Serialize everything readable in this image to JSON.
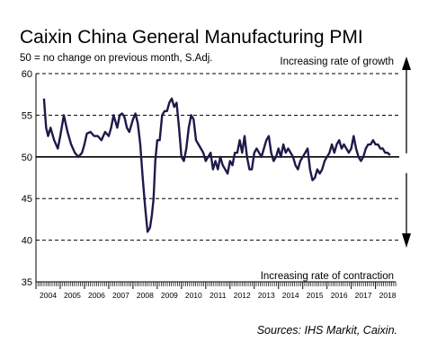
{
  "title": "Caixin China General Manufacturing PMI",
  "subtitle": "50 = no change on previous month, S.Adj.",
  "source": "Sources: IHS Markit, Caixin.",
  "colors": {
    "line": "#1d1a4a",
    "axis": "#000000",
    "grid": "#000000"
  },
  "chart_data": {
    "type": "line",
    "ylim": [
      35,
      60
    ],
    "yticks": [
      35,
      40,
      45,
      50,
      55,
      60
    ],
    "x_categories": [
      "2004",
      "2005",
      "2006",
      "2007",
      "2008",
      "2009",
      "2010",
      "2011",
      "2012",
      "2013",
      "2014",
      "2015",
      "2016",
      "2017",
      "2018"
    ],
    "grid": "dashed at 40, 45, 55, 60; solid at 50",
    "annotations": [
      {
        "text": "Increasing rate of growth",
        "arrow": "up"
      },
      {
        "text": "Increasing rate of contraction",
        "arrow": "down"
      }
    ],
    "series": [
      {
        "x": [
          2004.33,
          2004.42,
          2004.5,
          2004.6,
          2004.75,
          2004.9,
          2005.0,
          2005.15,
          2005.3,
          2005.45,
          2005.6,
          2005.75,
          2005.9,
          2006.0,
          2006.1,
          2006.25,
          2006.4,
          2006.55,
          2006.7,
          2006.85,
          2007.0,
          2007.1,
          2007.2,
          2007.35,
          2007.45,
          2007.55,
          2007.65,
          2007.75,
          2007.85,
          2008.0,
          2008.1,
          2008.2,
          2008.3,
          2008.4,
          2008.5,
          2008.6,
          2008.7,
          2008.78,
          2008.85,
          2008.92,
          2009.0,
          2009.1,
          2009.2,
          2009.3,
          2009.4,
          2009.5,
          2009.6,
          2009.7,
          2009.8,
          2009.9,
          2010.0,
          2010.1,
          2010.2,
          2010.3,
          2010.4,
          2010.5,
          2010.6,
          2010.7,
          2010.8,
          2010.9,
          2011.0,
          2011.1,
          2011.2,
          2011.3,
          2011.4,
          2011.5,
          2011.6,
          2011.7,
          2011.8,
          2011.9,
          2012.0,
          2012.1,
          2012.2,
          2012.3,
          2012.4,
          2012.5,
          2012.6,
          2012.7,
          2012.8,
          2012.9,
          2013.0,
          2013.1,
          2013.2,
          2013.3,
          2013.4,
          2013.5,
          2013.6,
          2013.7,
          2013.8,
          2013.9,
          2014.0,
          2014.1,
          2014.2,
          2014.3,
          2014.4,
          2014.5,
          2014.6,
          2014.7,
          2014.8,
          2014.9,
          2015.0,
          2015.1,
          2015.2,
          2015.3,
          2015.4,
          2015.5,
          2015.6,
          2015.7,
          2015.8,
          2015.9,
          2016.0,
          2016.1,
          2016.2,
          2016.3,
          2016.4,
          2016.5,
          2016.6,
          2016.7,
          2016.8,
          2016.9,
          2017.0,
          2017.1,
          2017.2,
          2017.3,
          2017.4,
          2017.5,
          2017.6,
          2017.7,
          2017.8,
          2017.9,
          2018.0,
          2018.1,
          2018.2,
          2018.3,
          2018.4,
          2018.5,
          2018.6
        ],
        "y": [
          57.0,
          53.5,
          52.5,
          53.5,
          52.0,
          51.0,
          52.5,
          55.0,
          53.0,
          51.5,
          50.5,
          50.0,
          50.5,
          51.5,
          52.8,
          53.0,
          52.5,
          52.5,
          52.0,
          53.0,
          52.5,
          53.5,
          55.0,
          53.5,
          55.0,
          55.2,
          54.8,
          53.5,
          53.0,
          54.5,
          55.2,
          54.0,
          51.5,
          47.5,
          44.0,
          41.0,
          41.5,
          43.0,
          45.0,
          49.5,
          52.0,
          52.0,
          55.0,
          55.5,
          55.5,
          56.5,
          57.0,
          56.0,
          56.5,
          53.5,
          50.0,
          49.5,
          51.0,
          53.5,
          55.0,
          54.5,
          52.0,
          51.5,
          51.0,
          50.5,
          49.5,
          50.0,
          50.5,
          48.5,
          49.5,
          48.5,
          50.0,
          49.0,
          48.5,
          48.0,
          49.5,
          49.0,
          50.5,
          50.5,
          52.0,
          50.5,
          52.5,
          50.0,
          48.5,
          48.5,
          50.5,
          51.0,
          50.5,
          50.0,
          51.0,
          52.0,
          52.5,
          50.5,
          49.5,
          50.0,
          51.0,
          50.0,
          51.5,
          50.5,
          51.0,
          50.5,
          50.0,
          49.0,
          48.5,
          49.5,
          50.0,
          50.5,
          51.0,
          48.5,
          47.2,
          47.5,
          48.5,
          48.0,
          48.5,
          49.5,
          50.0,
          50.5,
          51.5,
          50.5,
          51.5,
          52.0,
          51.0,
          51.5,
          51.0,
          50.5,
          51.0,
          52.5,
          51.0,
          50.0,
          49.5,
          50.0,
          51.0,
          51.5,
          51.5,
          52.0,
          51.5,
          51.5,
          51.0,
          51.0,
          50.5,
          50.5,
          50.2
        ]
      }
    ]
  }
}
